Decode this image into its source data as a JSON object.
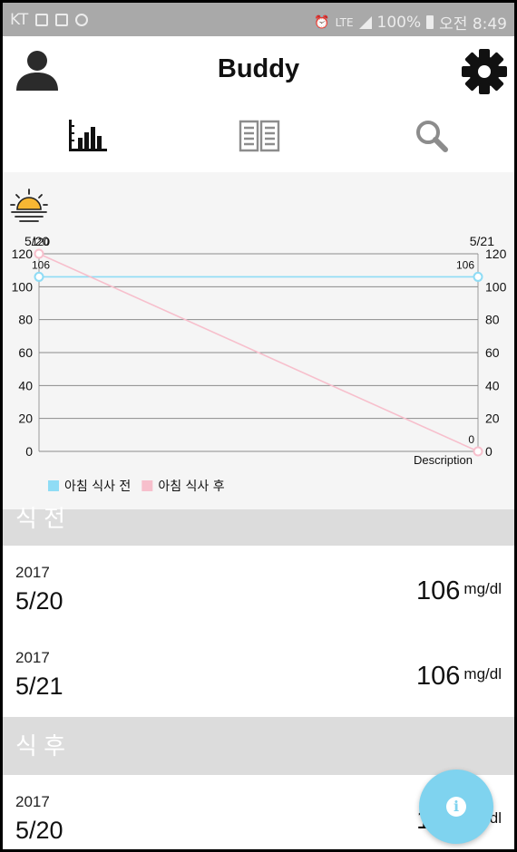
{
  "status_bar": {
    "carrier": "KT",
    "network": "LTE",
    "battery": "100%",
    "time": "오전 8:49"
  },
  "app": {
    "title": "Buddy"
  },
  "chart_data": {
    "type": "line",
    "x": [
      "5/20",
      "5/21"
    ],
    "series": [
      {
        "name": "아침 식사 전",
        "values": [
          106,
          106
        ],
        "color": "#8fdcf5"
      },
      {
        "name": "아침 식사 후",
        "values": [
          120,
          0
        ],
        "color": "#f7bfcc"
      }
    ],
    "ylim": [
      0,
      120
    ],
    "yticks": [
      0,
      20,
      40,
      60,
      80,
      100,
      120
    ],
    "description": "Description",
    "legend_position": "bottom-left",
    "grid": true
  },
  "sections": [
    {
      "title": "식 전",
      "rows": [
        {
          "year": "2017",
          "date": "5/20",
          "value": "106",
          "unit": "mg/dl"
        },
        {
          "year": "2017",
          "date": "5/21",
          "value": "106",
          "unit": "mg/dl"
        }
      ]
    },
    {
      "title": "식 후",
      "rows": [
        {
          "year": "2017",
          "date": "5/20",
          "value": "120",
          "unit": "mg/dl"
        }
      ]
    }
  ],
  "colors": {
    "accent": "#7fd3ef",
    "before_meal": "#8fdcf5",
    "after_meal": "#f7bfcc"
  },
  "icons": {
    "profile": "person-icon",
    "settings": "gear-icon",
    "tabs": [
      "bar-chart-icon",
      "book-icon",
      "search-icon"
    ],
    "weather": "sunrise-icon",
    "fab": "info-icon"
  }
}
